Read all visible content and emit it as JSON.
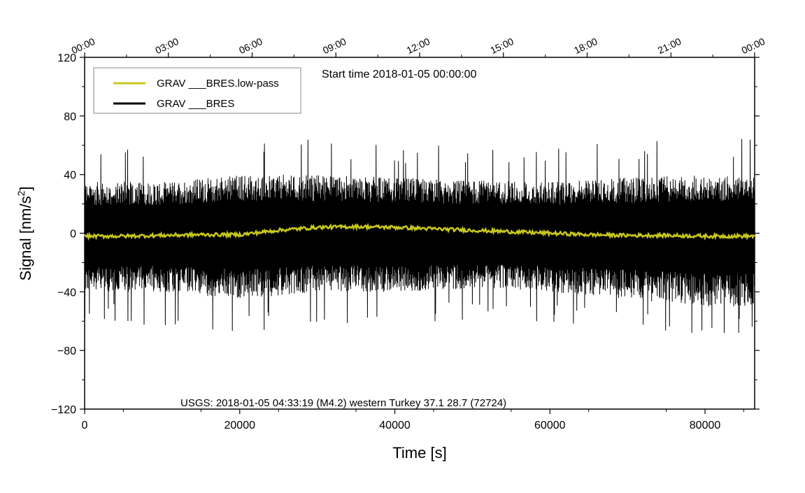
{
  "chart_data": {
    "type": "line",
    "title": "Start time 2018-01-05 00:00:00",
    "xlabel": "Time [s]",
    "ylabel_main": "Signal [nm/s",
    "ylabel_sup": "2",
    "ylabel_close": "]",
    "xlim": [
      0,
      86400
    ],
    "ylim": [
      -120,
      120
    ],
    "x_ticks": [
      0,
      20000,
      40000,
      60000,
      80000
    ],
    "x_tick_labels": [
      "0",
      "20000",
      "40000",
      "60000",
      "80000"
    ],
    "y_ticks": [
      -120,
      -80,
      -40,
      0,
      40,
      80,
      120
    ],
    "y_tick_labels": [
      "−120",
      "−80",
      "−40",
      "0",
      "40",
      "80",
      "120"
    ],
    "top_ticks_seconds": [
      0,
      10800,
      21600,
      32400,
      43200,
      54000,
      64800,
      75600,
      86400
    ],
    "top_tick_labels": [
      "00:00",
      "03:00",
      "06:00",
      "09:00",
      "12:00",
      "15:00",
      "18:00",
      "21:00",
      "00:00"
    ],
    "legend_placement": "top-left",
    "grid": false,
    "annotation": "USGS: 2018-01-05 04:33:19 (M4.2) western Turkey 37.1 28.7 (72724)",
    "series": [
      {
        "name": "GRAV ___BRES.low-pass",
        "color": "#c8c81e",
        "x": [
          0,
          5000,
          10000,
          15000,
          20000,
          25000,
          30000,
          35000,
          40000,
          45000,
          50000,
          55000,
          60000,
          65000,
          70000,
          75000,
          80000,
          86400
        ],
        "y": [
          -2,
          -2,
          -1.5,
          -1,
          -1,
          2,
          4,
          4.5,
          4,
          3,
          2,
          1,
          0,
          -1,
          -1.5,
          -1.5,
          -2,
          -2
        ]
      },
      {
        "name": "GRAV ___BRES",
        "color": "#000000",
        "x": [
          0,
          10000,
          20000,
          30000,
          40000,
          50000,
          60000,
          70000,
          80000,
          86400
        ],
        "y_envelope_upper": [
          35,
          35,
          40,
          40,
          38,
          36,
          35,
          38,
          40,
          40
        ],
        "y_envelope_lower": [
          -40,
          -40,
          -45,
          -40,
          -40,
          -38,
          -40,
          -45,
          -50,
          -50
        ],
        "y_peak_max": 65,
        "y_peak_min": -68
      }
    ]
  }
}
